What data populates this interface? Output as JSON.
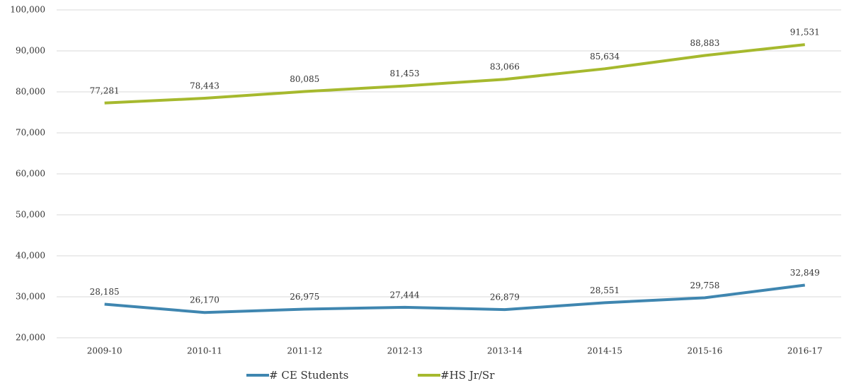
{
  "chart_data": {
    "type": "line",
    "categories": [
      "2009-10",
      "2010-11",
      "2011-12",
      "2012-13",
      "2013-14",
      "2014-15",
      "2015-16",
      "2016-17"
    ],
    "series": [
      {
        "name": "# CE Students",
        "color": "#3f86b0",
        "values": [
          28185,
          26170,
          26975,
          27444,
          26879,
          28551,
          29758,
          32849
        ],
        "value_labels": [
          "28,185",
          "26,170",
          "26,975",
          "27,444",
          "26,879",
          "28,551",
          "29,758",
          "32,849"
        ]
      },
      {
        "name": "#HS Jr/Sr",
        "color": "#a6b92e",
        "values": [
          77281,
          78443,
          80085,
          81453,
          83066,
          85634,
          88883,
          91531
        ],
        "value_labels": [
          "77,281",
          "78,443",
          "80,085",
          "81,453",
          "83,066",
          "85,634",
          "88,883",
          "91,531"
        ]
      }
    ],
    "ylim": [
      20000,
      100000
    ],
    "yticks": [
      {
        "value": 20000,
        "label": "20,000"
      },
      {
        "value": 30000,
        "label": "30,000"
      },
      {
        "value": 40000,
        "label": "40,000"
      },
      {
        "value": 50000,
        "label": "50,000"
      },
      {
        "value": 60000,
        "label": "60,000"
      },
      {
        "value": 70000,
        "label": "70,000"
      },
      {
        "value": 80000,
        "label": "80,000"
      },
      {
        "value": 90000,
        "label": "90,000"
      },
      {
        "value": 100000,
        "label": "100,000"
      }
    ],
    "grid": true,
    "legend": "bottom"
  }
}
